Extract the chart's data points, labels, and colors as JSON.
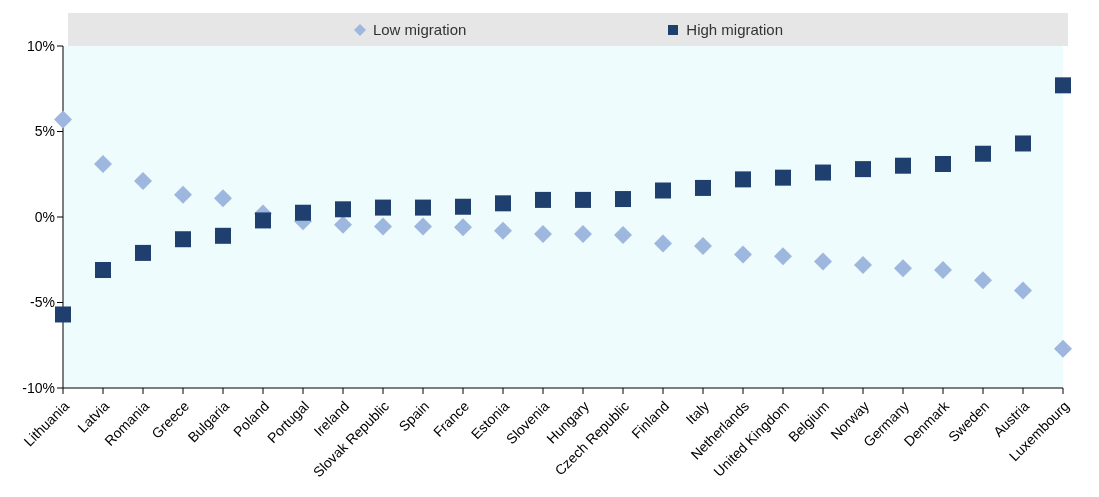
{
  "chart_data": {
    "type": "scatter",
    "categories": [
      "Lithuania",
      "Latvia",
      "Romania",
      "Greece",
      "Bulgaria",
      "Poland",
      "Portugal",
      "Ireland",
      "Slovak Republic",
      "Spain",
      "France",
      "Estonia",
      "Slovenia",
      "Hungary",
      "Czech Republic",
      "Finland",
      "Italy",
      "Netherlands",
      "United Kingdom",
      "Belgium",
      "Norway",
      "Germany",
      "Denmark",
      "Sweden",
      "Austria",
      "Luxembourg"
    ],
    "series": [
      {
        "name": "Low migration",
        "color": "#9db7df",
        "marker": "diamond",
        "values": [
          5.7,
          3.1,
          2.1,
          1.3,
          1.1,
          0.2,
          -0.25,
          -0.45,
          -0.55,
          -0.55,
          -0.6,
          -0.8,
          -1.0,
          -1.0,
          -1.05,
          -1.55,
          -1.7,
          -2.2,
          -2.3,
          -2.6,
          -2.8,
          -3.0,
          -3.1,
          -3.7,
          -4.3,
          -7.7
        ]
      },
      {
        "name": "High migration",
        "color": "#1f3f6e",
        "marker": "square",
        "values": [
          -5.7,
          -3.1,
          -2.1,
          -1.3,
          -1.1,
          -0.2,
          0.25,
          0.45,
          0.55,
          0.55,
          0.6,
          0.8,
          1.0,
          1.0,
          1.05,
          1.55,
          1.7,
          2.2,
          2.3,
          2.6,
          2.8,
          3.0,
          3.1,
          3.7,
          4.3,
          7.7
        ]
      }
    ],
    "ylim": [
      -10,
      10
    ],
    "yticks": [
      {
        "value": -10,
        "label": "-10%"
      },
      {
        "value": -5,
        "label": "-5%"
      },
      {
        "value": 0,
        "label": "0%"
      },
      {
        "value": 5,
        "label": "5%"
      },
      {
        "value": 10,
        "label": "10%"
      }
    ],
    "grid": false,
    "legend": "top"
  }
}
